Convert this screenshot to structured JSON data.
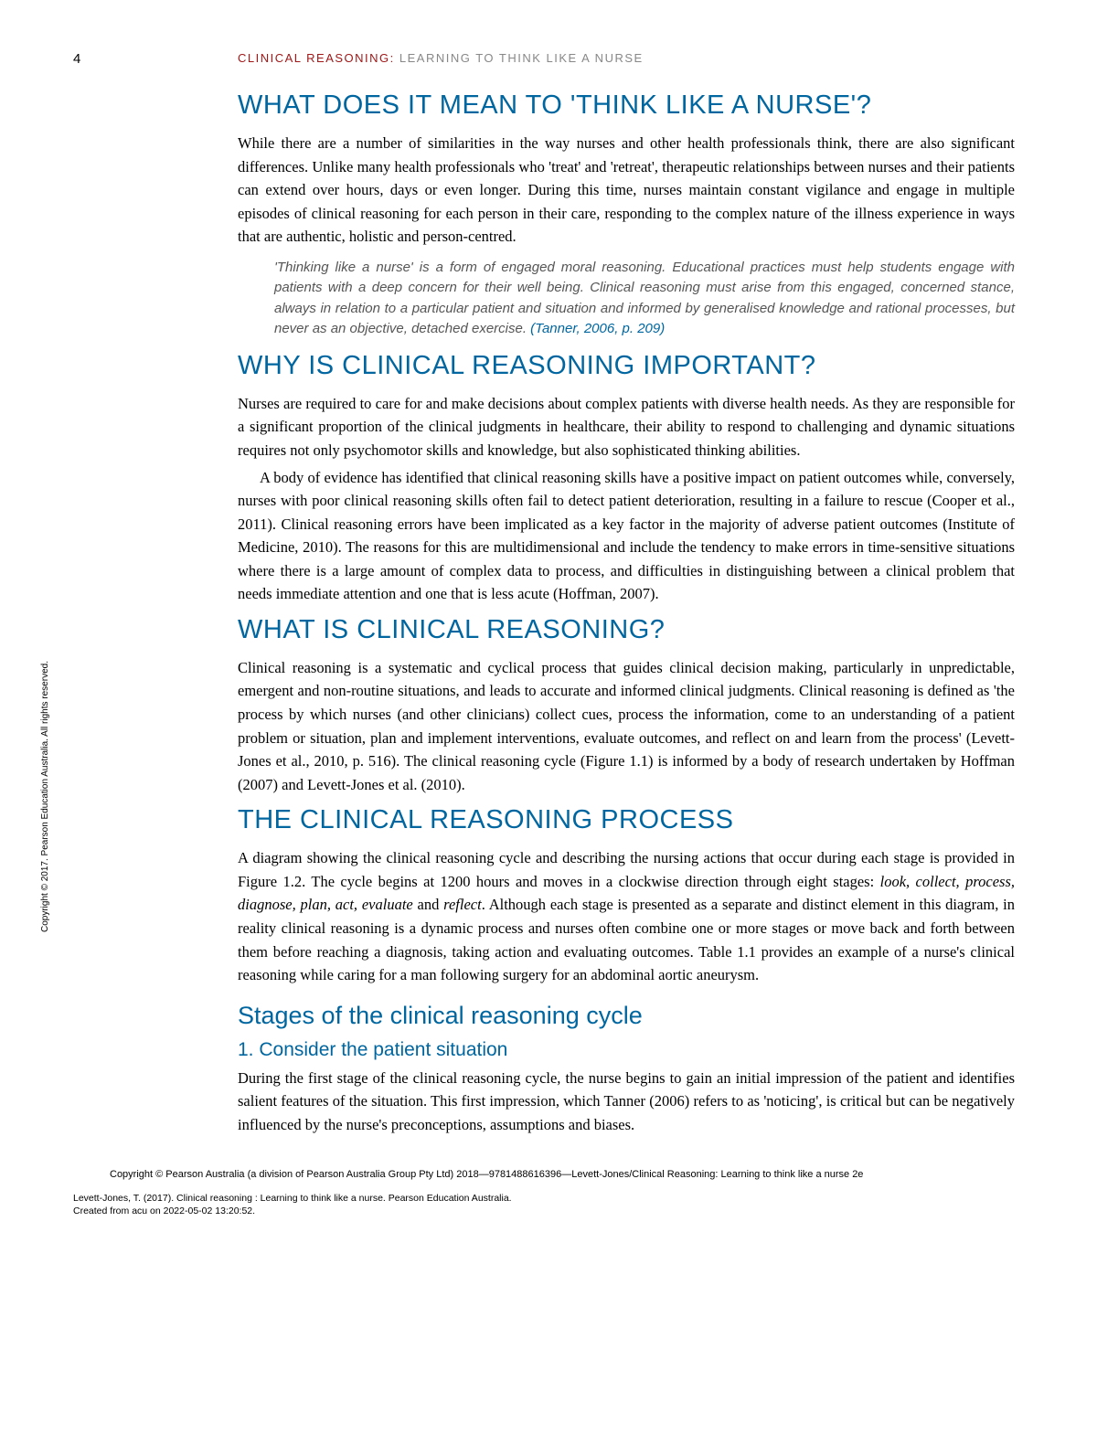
{
  "page_number": "4",
  "running_header": {
    "bold": "CLINICAL REASONING:",
    "light": " LEARNING TO THINK LIKE A NURSE"
  },
  "sections": {
    "s1": {
      "heading": "WHAT DOES IT MEAN TO 'THINK LIKE A NURSE'?",
      "p1": "While there are a number of similarities in the way nurses and other health professionals think, there are also significant differences. Unlike many health professionals who 'treat' and 'retreat', therapeutic relationships between nurses and their patients can extend over hours, days or even longer. During this time, nurses maintain constant vigilance and engage in multiple episodes of clinical reasoning for each person in their care, responding to the complex nature of the illness experience in ways that are authentic, holistic and person-centred.",
      "quote": "'Thinking like a nurse' is a form of engaged moral reasoning. Educational practices must help students engage with patients with a deep concern for their well being. Clinical reasoning must arise from this engaged, concerned stance, always in relation to a particular patient and situation and informed by generalised knowledge and rational processes, but never as an objective, detached exercise. ",
      "quote_cite": "(Tanner, 2006, p. 209)"
    },
    "s2": {
      "heading": "WHY IS CLINICAL REASONING IMPORTANT?",
      "p1": "Nurses are required to care for and make decisions about complex patients with diverse health needs. As they are responsible for a significant proportion of the clinical judgments in healthcare, their ability to respond to challenging and dynamic situations requires not only psychomotor skills and knowledge, but also sophisticated thinking abilities.",
      "p2": "A body of evidence has identified that clinical reasoning skills have a positive impact on patient outcomes while, conversely, nurses with poor clinical reasoning skills often fail to detect patient deterioration, resulting in a failure to rescue (Cooper et al., 2011). Clinical reasoning errors have been implicated as a key factor in the majority of adverse patient outcomes (Institute of Medicine, 2010). The reasons for this are multidimensional and include the tendency to make errors in time-sensitive situations where there is a large amount of complex data to process, and difficulties in distinguishing between a clinical problem that needs immediate attention and one that is less acute (Hoffman, 2007)."
    },
    "s3": {
      "heading": "WHAT IS CLINICAL REASONING?",
      "p1": "Clinical reasoning is a systematic and cyclical process that guides clinical decision making, particularly in unpredictable, emergent and non-routine situations, and leads to accurate and informed clinical judgments. Clinical reasoning is defined as 'the process by which nurses (and other clinicians) collect cues, process the information, come to an understanding of a patient problem or situation, plan and implement interventions, evaluate outcomes, and reflect on and learn from the process' (Levett-Jones et al., 2010, p. 516). The clinical reasoning cycle (Figure 1.1) is informed by a body of research undertaken by Hoffman (2007) and Levett-Jones et al. (2010)."
    },
    "s4": {
      "heading": "THE CLINICAL REASONING PROCESS",
      "p1_pre": "A diagram showing the clinical reasoning cycle and describing the nursing actions that occur during each stage is provided in Figure 1.2. The cycle begins at 1200 hours and moves in a clockwise direction through eight stages: ",
      "stages": "look, collect, process, diagnose, plan, act, evaluate",
      "p1_mid": " and ",
      "stage_last": "reflect",
      "p1_post": ". Although each stage is presented as a separate and distinct element in this diagram, in reality clinical reasoning is a dynamic process and nurses often combine one or more stages or move back and forth between them before reaching a diagnosis, taking action and evaluating outcomes. Table 1.1 provides an example of a nurse's clinical reasoning while caring for a man following surgery for an abdominal aortic aneurysm."
    },
    "s5": {
      "heading": "Stages of the clinical reasoning cycle",
      "sub": "1. Consider the patient situation",
      "p1": "During the first stage of the clinical reasoning cycle, the nurse begins to gain an initial impression of the patient and identifies salient features of the situation. This first impression, which Tanner (2006) refers to as 'noticing', is critical but can be negatively influenced by the nurse's preconceptions, assumptions and biases."
    }
  },
  "copyright_line": "Copyright © Pearson Australia (a division of Pearson Australia Group Pty Ltd) 2018—9781488616396—Levett-Jones/Clinical Reasoning: Learning to think like a nurse 2e",
  "citation_footer_l1": "Levett-Jones, T. (2017). Clinical reasoning : Learning to think like a nurse. Pearson Education Australia.",
  "citation_footer_l2": "Created from acu on 2022-05-02 13:20:52.",
  "vertical_copyright": "Copyright © 2017. Pearson Education Australia. All rights reserved."
}
